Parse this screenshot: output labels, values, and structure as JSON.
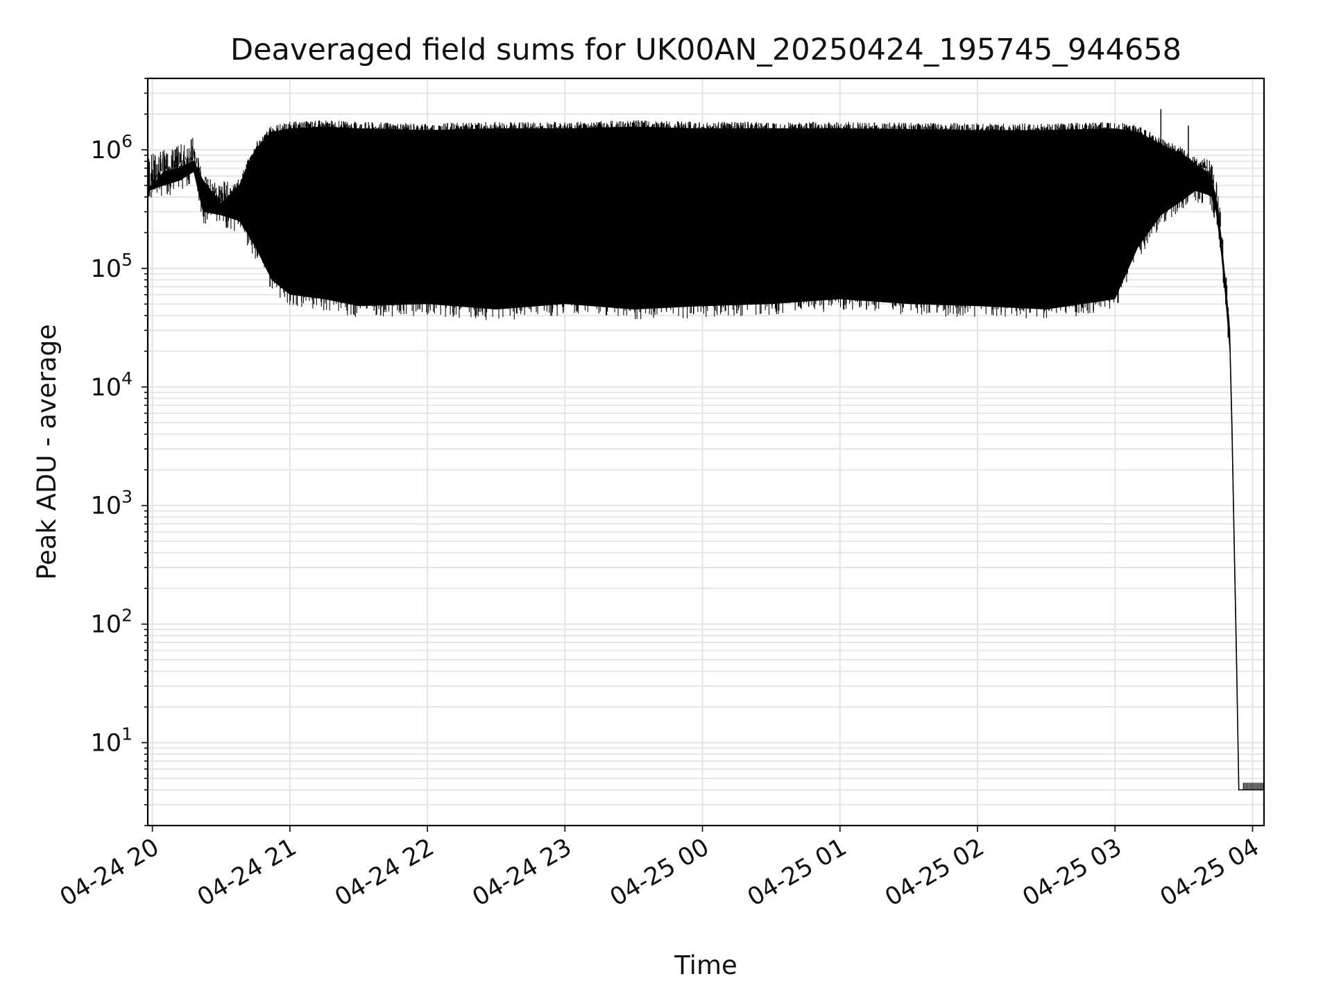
{
  "chart_data": {
    "type": "line",
    "title": "Deaveraged field sums for UK00AN_20250424_195745_944658",
    "xlabel": "Time",
    "ylabel": "Peak ADU - average",
    "yscale": "log",
    "ylim": [
      2,
      4000000.0
    ],
    "xlim": [
      "2025-04-24 19:58",
      "2025-04-25 04:05"
    ],
    "x_ticks": [
      "04-24 20",
      "04-24 21",
      "04-24 22",
      "04-24 23",
      "04-25 00",
      "04-25 01",
      "04-25 02",
      "04-25 03",
      "04-25 04"
    ],
    "y_ticks": [
      {
        "base": "10",
        "exp": "1",
        "value": 10
      },
      {
        "base": "10",
        "exp": "2",
        "value": 100
      },
      {
        "base": "10",
        "exp": "3",
        "value": 1000
      },
      {
        "base": "10",
        "exp": "4",
        "value": 10000
      },
      {
        "base": "10",
        "exp": "5",
        "value": 100000
      },
      {
        "base": "10",
        "exp": "6",
        "value": 1000000
      }
    ],
    "grid": true,
    "line_color": "#000000",
    "grid_color": "#e3e3e3",
    "series": [
      {
        "x": [
          "2025-04-24 19:58",
          "2025-04-24 20:05",
          "2025-04-24 20:12",
          "2025-04-24 20:18",
          "2025-04-24 20:22",
          "2025-04-24 20:30",
          "2025-04-24 20:38",
          "2025-04-24 20:45",
          "2025-04-24 20:52",
          "2025-04-24 21:00",
          "2025-04-24 21:15",
          "2025-04-24 21:30",
          "2025-04-24 22:00",
          "2025-04-24 22:30",
          "2025-04-24 23:00",
          "2025-04-24 23:30",
          "2025-04-25 00:00",
          "2025-04-25 00:30",
          "2025-04-25 01:00",
          "2025-04-25 01:30",
          "2025-04-25 02:00",
          "2025-04-25 02:30",
          "2025-04-25 03:00",
          "2025-04-25 03:10",
          "2025-04-25 03:20",
          "2025-04-25 03:30",
          "2025-04-25 03:35",
          "2025-04-25 03:40",
          "2025-04-25 03:42",
          "2025-04-25 03:44",
          "2025-04-25 03:46",
          "2025-04-25 03:48",
          "2025-04-25 03:50",
          "2025-04-25 03:51",
          "2025-04-25 03:52",
          "2025-04-25 03:53",
          "2025-04-25 03:54",
          "2025-04-25 03:55",
          "2025-04-25 03:56",
          "2025-04-25 04:00",
          "2025-04-25 04:05"
        ],
        "upper": [
          450000,
          650000,
          700000,
          800000,
          550000,
          350000,
          500000,
          1000000,
          1400000,
          1500000,
          1550000,
          1500000,
          1450000,
          1500000,
          1500000,
          1550000,
          1500000,
          1500000,
          1500000,
          1480000,
          1450000,
          1450000,
          1500000,
          1400000,
          1100000,
          900000,
          750000,
          650000,
          550000,
          400000,
          200000,
          80000,
          30000,
          5000,
          500,
          50,
          4,
          4,
          4,
          4,
          4
        ],
        "lower": [
          450000,
          500000,
          550000,
          650000,
          300000,
          280000,
          250000,
          150000,
          80000,
          60000,
          55000,
          48000,
          50000,
          45000,
          50000,
          45000,
          48000,
          50000,
          55000,
          50000,
          48000,
          45000,
          55000,
          150000,
          280000,
          380000,
          450000,
          420000,
          400000,
          300000,
          150000,
          60000,
          20000,
          3000,
          300,
          30,
          4,
          4,
          4,
          4,
          4
        ]
      }
    ]
  }
}
